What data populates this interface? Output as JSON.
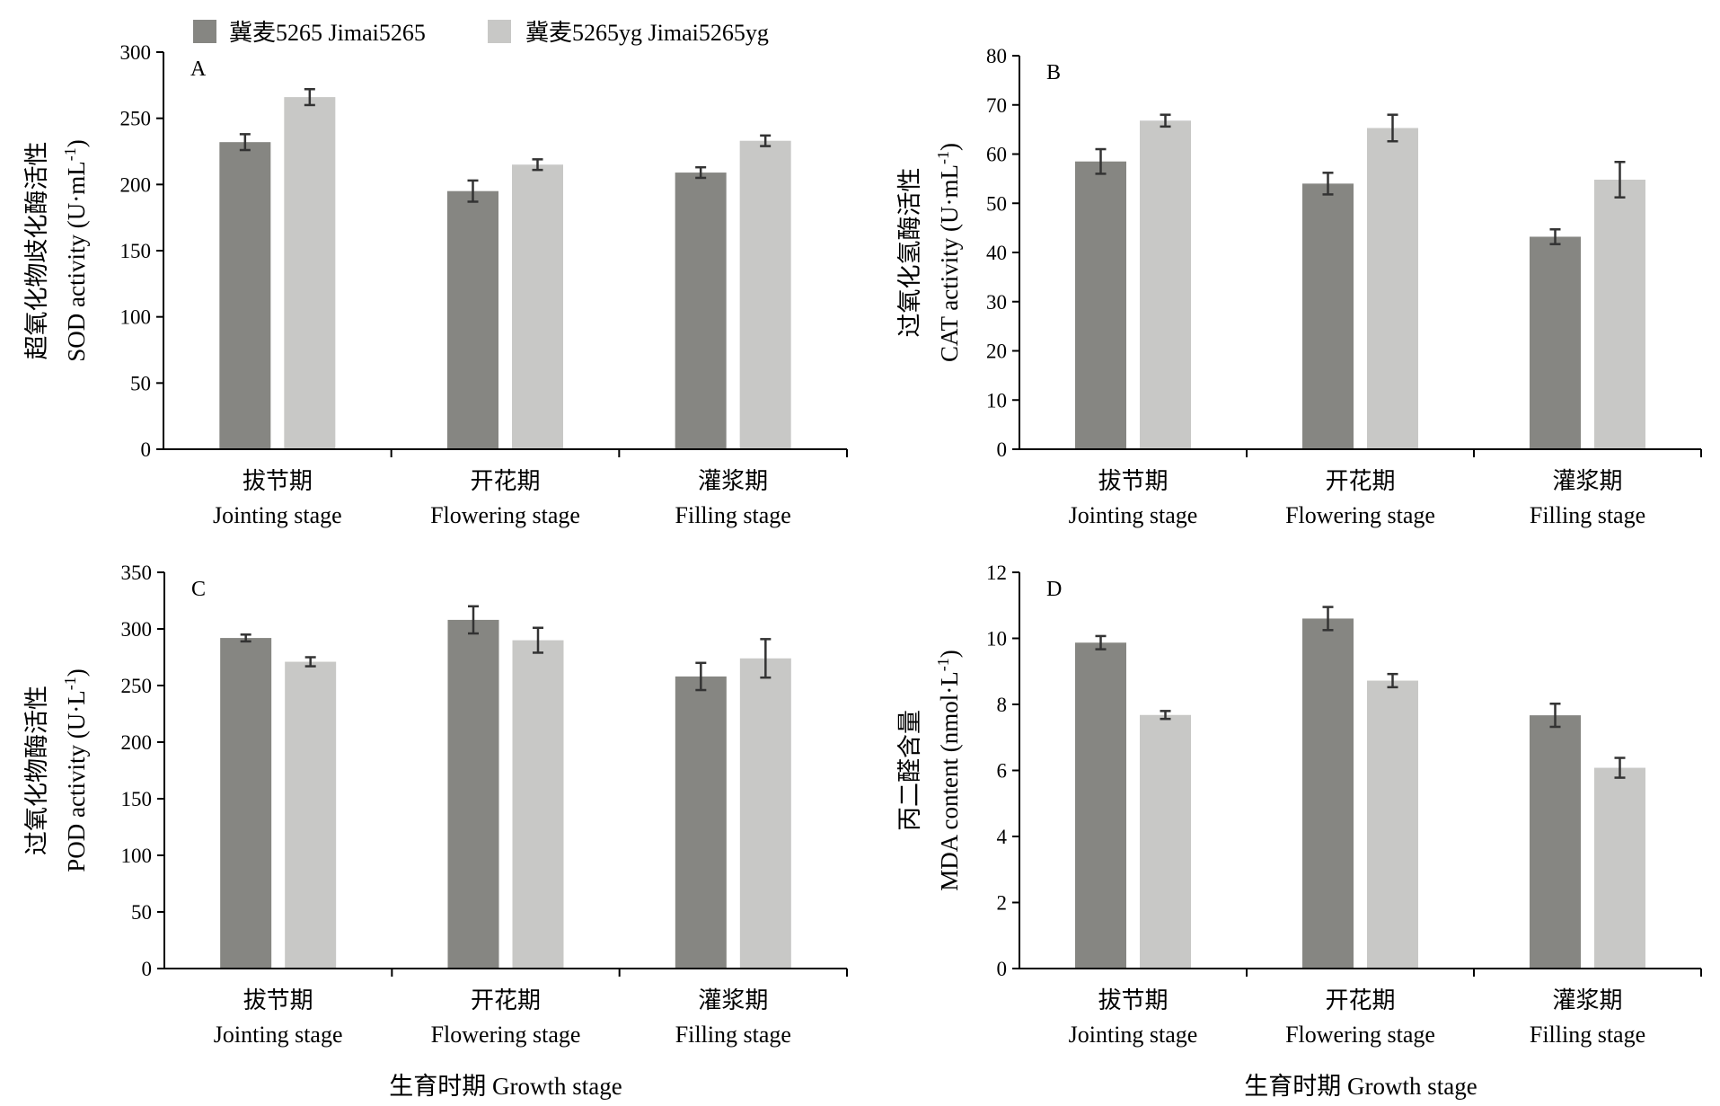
{
  "legend": {
    "items": [
      {
        "label": "冀麦5265 Jimai5265",
        "color": "#868682"
      },
      {
        "label": "冀麦5265yg  Jimai5265yg",
        "color": "#c8c8c6"
      }
    ]
  },
  "x_axis_title": "生育时期  Growth stage",
  "chart_data": [
    {
      "type": "bar",
      "panel": "A",
      "ylabel_cn": "超氧化物歧化酶活性",
      "ylabel_en": "SOD activity (U·mL",
      "ylabel_sup": "-1",
      "ylim": [
        0,
        300
      ],
      "yticks": [
        0,
        50,
        100,
        150,
        200,
        250,
        300
      ],
      "categories_cn": [
        "拔节期",
        "开花期",
        "灌浆期"
      ],
      "categories_en": [
        "Jointing stage",
        "Flowering stage",
        "Filling stage"
      ],
      "series": [
        {
          "values": [
            232,
            195,
            209
          ],
          "errors": [
            6,
            8,
            4
          ]
        },
        {
          "values": [
            266,
            215,
            233
          ],
          "errors": [
            6,
            4,
            4
          ]
        }
      ]
    },
    {
      "type": "bar",
      "panel": "B",
      "ylabel_cn": "过氧化氢酶活性",
      "ylabel_en": "CAT activity (U·mL",
      "ylabel_sup": "-1",
      "ylim": [
        0,
        80
      ],
      "yticks": [
        0,
        10,
        20,
        30,
        40,
        50,
        60,
        70,
        80
      ],
      "categories_cn": [
        "拔节期",
        "开花期",
        "灌浆期"
      ],
      "categories_en": [
        "Jointing stage",
        "Flowering stage",
        "Filling stage"
      ],
      "series": [
        {
          "values": [
            58.5,
            54,
            43.2
          ],
          "errors": [
            2.5,
            2.2,
            1.5
          ]
        },
        {
          "values": [
            66.8,
            65.3,
            54.8
          ],
          "errors": [
            1.2,
            2.7,
            3.6
          ]
        }
      ]
    },
    {
      "type": "bar",
      "panel": "C",
      "ylabel_cn": "过氧化物酶活性",
      "ylabel_en": "POD activity (U·L",
      "ylabel_sup": "-1",
      "ylim": [
        0,
        350
      ],
      "yticks": [
        0,
        50,
        100,
        150,
        200,
        250,
        300,
        350
      ],
      "categories_cn": [
        "拔节期",
        "开花期",
        "灌浆期"
      ],
      "categories_en": [
        "Jointing stage",
        "Flowering stage",
        "Filling stage"
      ],
      "series": [
        {
          "values": [
            292,
            308,
            258
          ],
          "errors": [
            3,
            12,
            12
          ]
        },
        {
          "values": [
            271,
            290,
            274
          ],
          "errors": [
            4,
            11,
            17
          ]
        }
      ]
    },
    {
      "type": "bar",
      "panel": "D",
      "ylabel_cn": "丙二醛含量",
      "ylabel_en": "MDA content (nmol·L",
      "ylabel_sup": "-1",
      "ylim": [
        0,
        12
      ],
      "yticks": [
        0,
        2,
        4,
        6,
        8,
        10,
        12
      ],
      "categories_cn": [
        "拔节期",
        "开花期",
        "灌浆期"
      ],
      "categories_en": [
        "Jointing stage",
        "Flowering stage",
        "Filling stage"
      ],
      "series": [
        {
          "values": [
            9.87,
            10.6,
            7.67
          ],
          "errors": [
            0.2,
            0.35,
            0.35
          ]
        },
        {
          "values": [
            7.68,
            8.72,
            6.08
          ],
          "errors": [
            0.12,
            0.2,
            0.3
          ]
        }
      ]
    }
  ]
}
